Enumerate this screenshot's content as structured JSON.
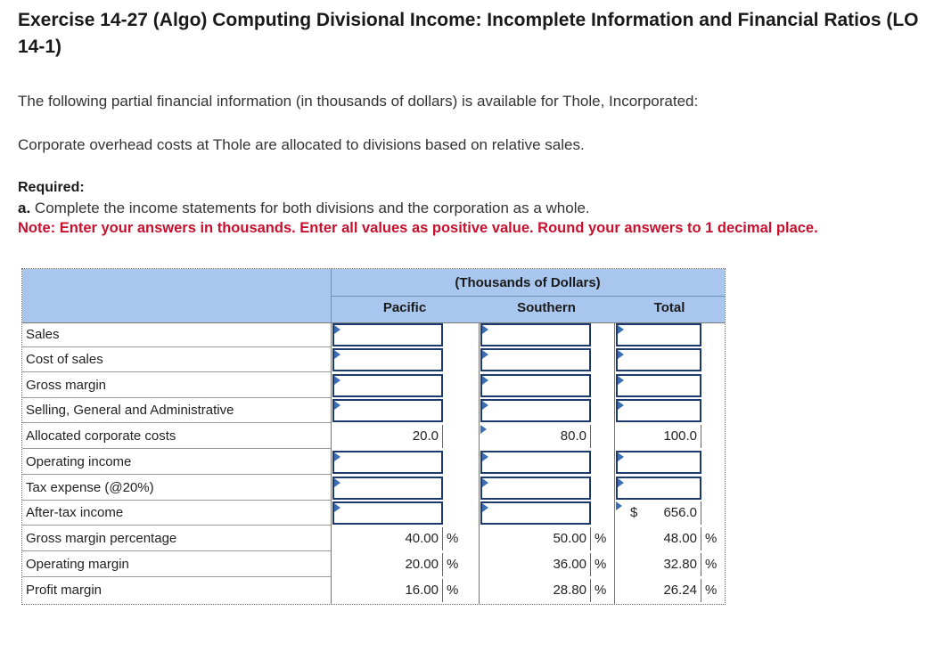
{
  "title": "Exercise 14-27 (Algo) Computing Divisional Income: Incomplete Information and Financial Ratios (LO 14-1)",
  "intro": "The following partial financial information (in thousands of dollars) is available for Thole, Incorporated:",
  "overhead": "Corporate overhead costs at Thole are allocated to divisions based on relative sales.",
  "required_heading": "Required:",
  "required_a_letter": "a.",
  "required_a_text": "Complete the income statements for both divisions and the corporation as a whole.",
  "note": "Note: Enter your answers in thousands. Enter all values as positive value. Round your answers to 1 decimal place.",
  "table": {
    "group_header": "(Thousands of Dollars)",
    "columns": [
      "Pacific",
      "Southern",
      "Total"
    ],
    "rows": [
      "Sales",
      "Cost of sales",
      "Gross margin",
      "Selling, General and Administrative",
      "Allocated corporate costs",
      "Operating income",
      "Tax expense (@20%)",
      "After-tax income",
      "Gross margin percentage",
      "Operating margin",
      "Profit margin"
    ],
    "allocated": {
      "pacific": "20.0",
      "southern": "80.0",
      "total": "100.0"
    },
    "after_tax_total": {
      "currency": "$",
      "value": "656.0"
    },
    "gross_margin_pct": {
      "pacific": "40.00",
      "southern": "50.00",
      "total": "48.00"
    },
    "operating_margin": {
      "pacific": "20.00",
      "southern": "36.00",
      "total": "32.80"
    },
    "profit_margin": {
      "pacific": "16.00",
      "southern": "28.80",
      "total": "26.24"
    },
    "pct_sign": "%"
  }
}
